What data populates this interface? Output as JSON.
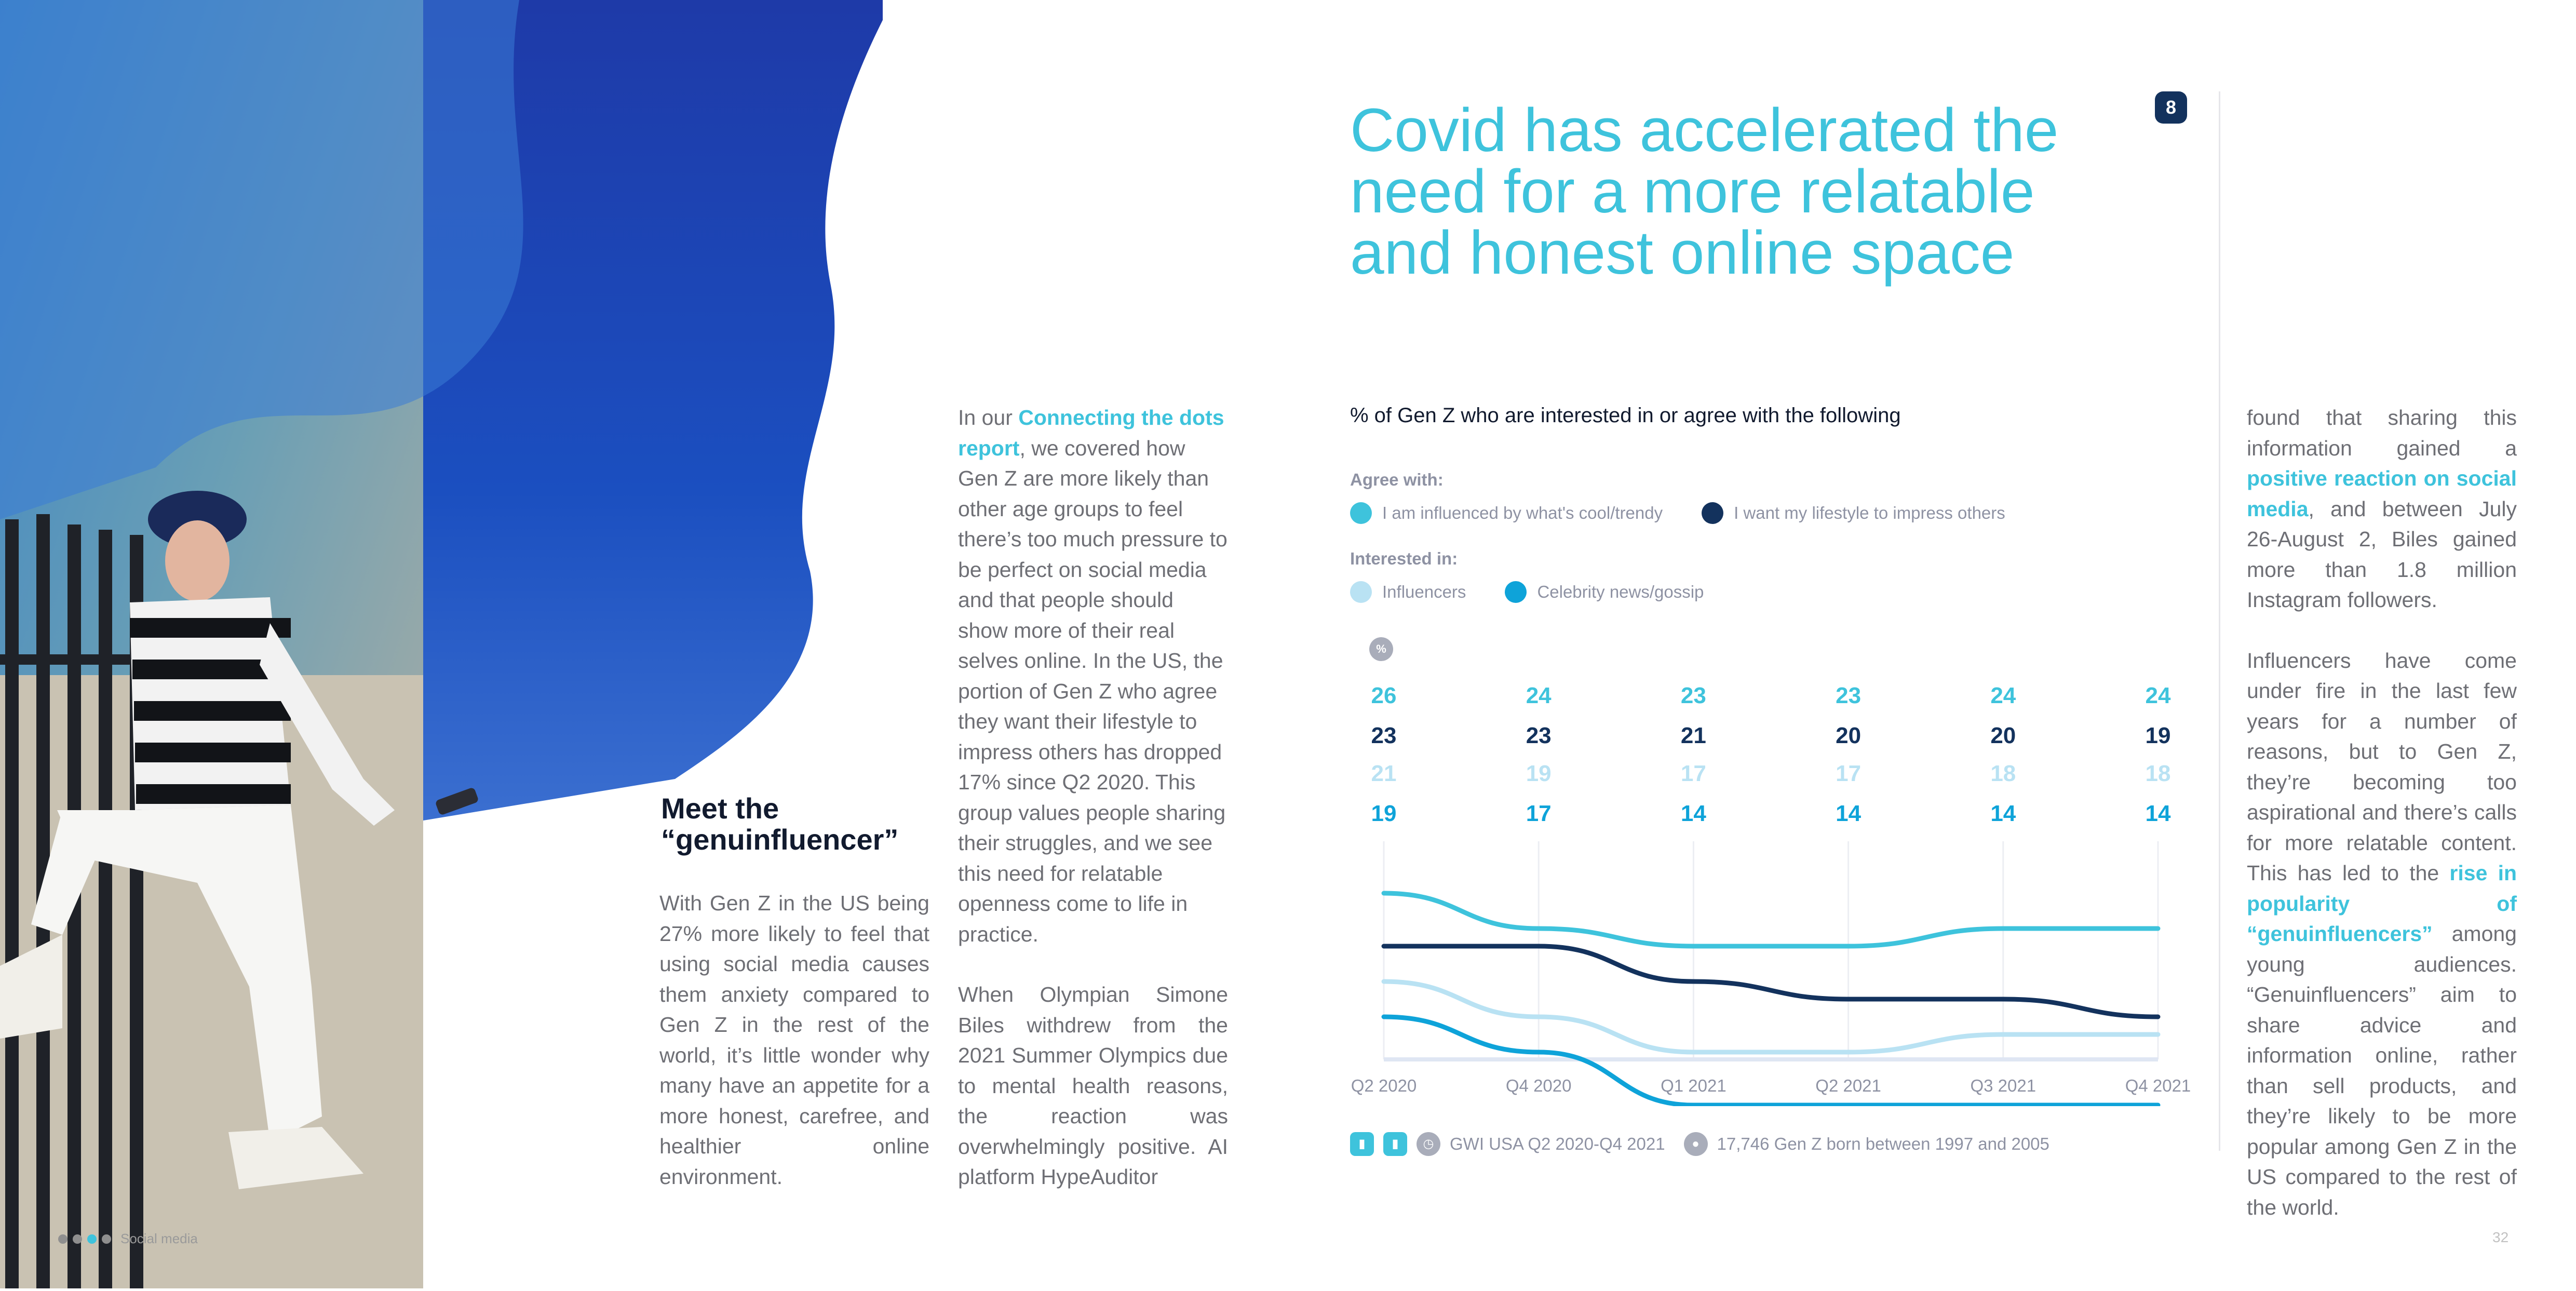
{
  "page": {
    "badge": "8",
    "section": "Social media",
    "page_number": "32"
  },
  "headline": [
    "Covid has accelerated the",
    "need for a more relatable",
    "and honest online space"
  ],
  "left": {
    "title": [
      "Meet the",
      "“genuinfluencer”"
    ],
    "text": "With Gen Z in the US being 27% more likely to feel that using social media causes them anxiety compared to Gen Z in the rest of the world, it’s little wonder why many have an appetite for a more honest, carefree, and healthier online environment."
  },
  "middle": {
    "p1_pre": "In our ",
    "p1_link": "Connecting the dots report",
    "p1_post": ", we covered how Gen Z are more likely than other age groups to feel there’s too much pressure to be perfect on social media and that people should show more of their real selves online. In the US, the portion of Gen Z who agree they want their lifestyle to impress others has dropped 17% since Q2 2020. This group values people sharing their struggles, and we see this need for relatable openness come to life in practice.",
    "p2": "When Olympian Simone Biles withdrew from the 2021 Summer Olympics due to mental health reasons, the reaction was overwhelmingly positive. AI platform HypeAuditor"
  },
  "right": {
    "p1_pre": "found that sharing this information gained a ",
    "p1_link": "positive reaction on social media",
    "p1_post": ", and between July 26-August 2, Biles gained more than 1.8 million Instagram followers.",
    "p2_pre": "Influencers have come under fire in the last few years for a number of reasons, but to Gen Z, they’re becoming too aspirational and there’s calls for more relatable content. This has led to the ",
    "p2_link": "rise in popularity of “genuinfluencers”",
    "p2_post": " among young audiences. “Genuinfluencers” aim to share advice and information online, rather than sell products, and they’re likely to be more popular among Gen Z in the US compared to the rest of the world."
  },
  "chart_data": {
    "type": "line",
    "title": "% of Gen Z who are interested in or agree with the following",
    "legend_groups": [
      {
        "label": "Agree with:",
        "items": [
          "I am influenced by what's cool/trendy",
          "I want my lifestyle to impress others"
        ]
      },
      {
        "label": "Interested in:",
        "items": [
          "Influencers",
          "Celebrity news/gossip"
        ]
      }
    ],
    "unit_label": "%",
    "x": [
      "Q2 2020",
      "Q4 2020",
      "Q1 2021",
      "Q2 2021",
      "Q3 2021",
      "Q4 2021"
    ],
    "series": [
      {
        "name": "I am influenced by what's cool/trendy",
        "color": "#3ec3dc",
        "values": [
          26,
          24,
          23,
          23,
          24,
          24
        ]
      },
      {
        "name": "I want my lifestyle to impress others",
        "color": "#13325d",
        "values": [
          23,
          23,
          21,
          20,
          20,
          19
        ]
      },
      {
        "name": "Influencers",
        "color": "#b9e2f3",
        "values": [
          21,
          19,
          17,
          17,
          18,
          18
        ]
      },
      {
        "name": "Celebrity news/gossip",
        "color": "#0ea3d9",
        "values": [
          19,
          17,
          14,
          14,
          14,
          14
        ]
      }
    ],
    "source": "GWI USA Q2 2020-Q4 2021",
    "sample": "17,746 Gen Z born between 1997 and 2005"
  }
}
